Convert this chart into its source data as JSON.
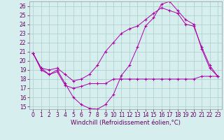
{
  "xlabel": "Windchill (Refroidissement éolien,°C)",
  "xlim": [
    -0.5,
    23.5
  ],
  "ylim": [
    14.7,
    26.5
  ],
  "yticks": [
    15,
    16,
    17,
    18,
    19,
    20,
    21,
    22,
    23,
    24,
    25,
    26
  ],
  "xticks": [
    0,
    1,
    2,
    3,
    4,
    5,
    6,
    7,
    8,
    9,
    10,
    11,
    12,
    13,
    14,
    15,
    16,
    17,
    18,
    19,
    20,
    21,
    22,
    23
  ],
  "background_color": "#d6eeee",
  "grid_color": "#aacccc",
  "line_color": "#aa00aa",
  "line1_y": [
    20.8,
    19.2,
    18.5,
    19.0,
    17.5,
    16.0,
    15.2,
    14.8,
    14.7,
    15.2,
    16.3,
    18.4,
    19.5,
    21.5,
    23.8,
    24.7,
    26.2,
    26.5,
    25.5,
    24.5,
    24.0,
    21.3,
    19.2,
    18.3
  ],
  "line2_y": [
    20.8,
    19.0,
    18.5,
    18.8,
    17.3,
    17.0,
    17.2,
    17.5,
    17.5,
    17.5,
    18.0,
    18.0,
    18.0,
    18.0,
    18.0,
    18.0,
    18.0,
    18.0,
    18.0,
    18.0,
    18.0,
    18.3,
    18.3,
    18.3
  ],
  "line3_y": [
    20.8,
    19.2,
    19.0,
    19.2,
    18.5,
    17.8,
    18.0,
    18.5,
    19.5,
    21.0,
    22.0,
    23.0,
    23.5,
    23.8,
    24.5,
    25.2,
    25.8,
    25.5,
    25.2,
    24.0,
    23.8,
    21.5,
    19.5,
    18.3
  ],
  "tick_color": "#660066",
  "tick_fontsize": 5.5,
  "xlabel_fontsize": 6.0
}
